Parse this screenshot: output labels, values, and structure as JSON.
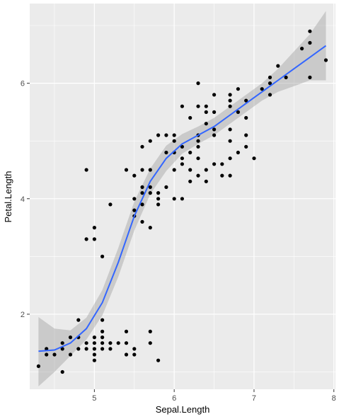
{
  "chart_data": {
    "type": "scatter",
    "title": "",
    "xlabel": "Sepal.Length",
    "ylabel": "Petal.Length",
    "xlim": [
      4.19,
      8.02
    ],
    "ylim": [
      0.7,
      7.38
    ],
    "x_ticks": [
      5,
      6,
      7,
      8
    ],
    "y_ticks": [
      2,
      4,
      6
    ],
    "x_minor": [
      4.5,
      5.5,
      6.5,
      7.5
    ],
    "y_minor": [
      1,
      3,
      5,
      7
    ],
    "grid": true,
    "legend": "none",
    "colors": {
      "panel": "#ebebeb",
      "grid": "#ffffff",
      "points": "#000000",
      "smooth_line": "#3366ff",
      "confidence_band": "#999999"
    },
    "points": [
      [
        4.3,
        1.1
      ],
      [
        4.4,
        1.4
      ],
      [
        4.4,
        1.3
      ],
      [
        4.5,
        1.3
      ],
      [
        4.6,
        1.4
      ],
      [
        4.6,
        1.5
      ],
      [
        4.6,
        1.0
      ],
      [
        4.7,
        1.3
      ],
      [
        4.7,
        1.6
      ],
      [
        4.8,
        1.6
      ],
      [
        4.8,
        1.9
      ],
      [
        4.8,
        1.4
      ],
      [
        4.9,
        1.4
      ],
      [
        4.9,
        1.5
      ],
      [
        4.9,
        4.5
      ],
      [
        4.9,
        3.3
      ],
      [
        5.0,
        1.4
      ],
      [
        5.0,
        1.5
      ],
      [
        5.0,
        1.6
      ],
      [
        5.0,
        1.2
      ],
      [
        5.0,
        1.3
      ],
      [
        5.0,
        3.5
      ],
      [
        5.0,
        3.3
      ],
      [
        5.1,
        1.4
      ],
      [
        5.1,
        1.5
      ],
      [
        5.1,
        1.7
      ],
      [
        5.1,
        1.6
      ],
      [
        5.1,
        1.9
      ],
      [
        5.1,
        3.0
      ],
      [
        5.2,
        1.5
      ],
      [
        5.2,
        1.4
      ],
      [
        5.2,
        3.9
      ],
      [
        5.3,
        1.5
      ],
      [
        5.4,
        1.3
      ],
      [
        5.4,
        1.5
      ],
      [
        5.4,
        1.7
      ],
      [
        5.4,
        4.5
      ],
      [
        5.5,
        1.3
      ],
      [
        5.5,
        1.4
      ],
      [
        5.5,
        3.7
      ],
      [
        5.5,
        3.8
      ],
      [
        5.5,
        4.0
      ],
      [
        5.5,
        4.4
      ],
      [
        5.6,
        3.6
      ],
      [
        5.6,
        3.9
      ],
      [
        5.6,
        4.1
      ],
      [
        5.6,
        4.2
      ],
      [
        5.6,
        4.5
      ],
      [
        5.6,
        4.9
      ],
      [
        5.7,
        1.5
      ],
      [
        5.7,
        1.7
      ],
      [
        5.7,
        3.5
      ],
      [
        5.7,
        4.1
      ],
      [
        5.7,
        4.2
      ],
      [
        5.7,
        4.5
      ],
      [
        5.7,
        5.0
      ],
      [
        5.8,
        1.2
      ],
      [
        5.8,
        3.9
      ],
      [
        5.8,
        4.0
      ],
      [
        5.8,
        4.1
      ],
      [
        5.8,
        5.1
      ],
      [
        5.9,
        4.2
      ],
      [
        5.9,
        4.8
      ],
      [
        5.9,
        5.1
      ],
      [
        6.0,
        4.0
      ],
      [
        6.0,
        4.5
      ],
      [
        6.0,
        4.8
      ],
      [
        6.0,
        5.0
      ],
      [
        6.0,
        5.1
      ],
      [
        6.1,
        4.0
      ],
      [
        6.1,
        4.6
      ],
      [
        6.1,
        4.7
      ],
      [
        6.1,
        4.9
      ],
      [
        6.1,
        5.6
      ],
      [
        6.2,
        4.3
      ],
      [
        6.2,
        4.5
      ],
      [
        6.2,
        4.8
      ],
      [
        6.2,
        5.4
      ],
      [
        6.3,
        4.4
      ],
      [
        6.3,
        4.7
      ],
      [
        6.3,
        4.9
      ],
      [
        6.3,
        5.0
      ],
      [
        6.3,
        5.1
      ],
      [
        6.3,
        5.6
      ],
      [
        6.3,
        6.0
      ],
      [
        6.4,
        4.3
      ],
      [
        6.4,
        4.5
      ],
      [
        6.4,
        5.3
      ],
      [
        6.4,
        5.5
      ],
      [
        6.4,
        5.6
      ],
      [
        6.5,
        4.6
      ],
      [
        6.5,
        5.1
      ],
      [
        6.5,
        5.2
      ],
      [
        6.5,
        5.5
      ],
      [
        6.5,
        5.8
      ],
      [
        6.6,
        4.4
      ],
      [
        6.6,
        4.6
      ],
      [
        6.7,
        4.4
      ],
      [
        6.7,
        4.7
      ],
      [
        6.7,
        5.0
      ],
      [
        6.7,
        5.2
      ],
      [
        6.7,
        5.6
      ],
      [
        6.7,
        5.7
      ],
      [
        6.7,
        5.8
      ],
      [
        6.8,
        4.8
      ],
      [
        6.8,
        5.5
      ],
      [
        6.8,
        5.9
      ],
      [
        6.9,
        4.9
      ],
      [
        6.9,
        5.1
      ],
      [
        6.9,
        5.4
      ],
      [
        6.9,
        5.7
      ],
      [
        7.0,
        4.7
      ],
      [
        7.1,
        5.9
      ],
      [
        7.2,
        5.8
      ],
      [
        7.2,
        6.0
      ],
      [
        7.2,
        6.1
      ],
      [
        7.3,
        6.3
      ],
      [
        7.4,
        6.1
      ],
      [
        7.6,
        6.6
      ],
      [
        7.7,
        6.1
      ],
      [
        7.7,
        6.7
      ],
      [
        7.7,
        6.9
      ],
      [
        7.9,
        6.4
      ]
    ],
    "smooth": {
      "x": [
        4.3,
        4.5,
        4.7,
        4.9,
        5.1,
        5.3,
        5.5,
        5.7,
        5.9,
        6.1,
        6.3,
        6.5,
        6.7,
        6.9,
        7.1,
        7.3,
        7.5,
        7.7,
        7.9
      ],
      "y": [
        1.36,
        1.38,
        1.5,
        1.75,
        2.2,
        2.9,
        3.7,
        4.3,
        4.7,
        4.95,
        5.1,
        5.25,
        5.45,
        5.65,
        5.85,
        6.05,
        6.25,
        6.45,
        6.65
      ],
      "lower": [
        0.75,
        1.0,
        1.28,
        1.56,
        1.98,
        2.65,
        3.45,
        4.08,
        4.48,
        4.78,
        4.95,
        5.1,
        5.3,
        5.5,
        5.7,
        5.85,
        5.95,
        6.05,
        6.05
      ],
      "upper": [
        1.95,
        1.75,
        1.72,
        1.94,
        2.42,
        3.15,
        3.95,
        4.52,
        4.92,
        5.12,
        5.25,
        5.4,
        5.6,
        5.8,
        6.0,
        6.25,
        6.55,
        6.85,
        7.25
      ]
    }
  }
}
